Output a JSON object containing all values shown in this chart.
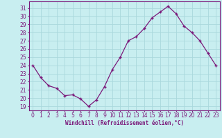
{
  "x": [
    0,
    1,
    2,
    3,
    4,
    5,
    6,
    7,
    8,
    9,
    10,
    11,
    12,
    13,
    14,
    15,
    16,
    17,
    18,
    19,
    20,
    21,
    22,
    23
  ],
  "y": [
    24.0,
    22.5,
    21.5,
    21.2,
    20.3,
    20.4,
    19.9,
    19.0,
    19.8,
    21.4,
    23.5,
    25.0,
    27.0,
    27.5,
    28.5,
    29.8,
    30.5,
    31.2,
    30.3,
    28.8,
    28.0,
    27.0,
    25.5,
    24.0
  ],
  "line_color": "#7b1a7b",
  "marker": "+",
  "bg_color": "#c8eef0",
  "grid_color": "#aad8dc",
  "xlabel": "Windchill (Refroidissement éolien,°C)",
  "xlabel_color": "#7b1a7b",
  "ylim": [
    18.5,
    31.8
  ],
  "yticks": [
    19,
    20,
    21,
    22,
    23,
    24,
    25,
    26,
    27,
    28,
    29,
    30,
    31
  ],
  "xticks": [
    0,
    1,
    2,
    3,
    4,
    5,
    6,
    7,
    8,
    9,
    10,
    11,
    12,
    13,
    14,
    15,
    16,
    17,
    18,
    19,
    20,
    21,
    22,
    23
  ],
  "tick_color": "#7b1a7b",
  "spine_color": "#7b1a7b",
  "font_size": 5.5,
  "marker_size": 3,
  "line_width": 0.9
}
